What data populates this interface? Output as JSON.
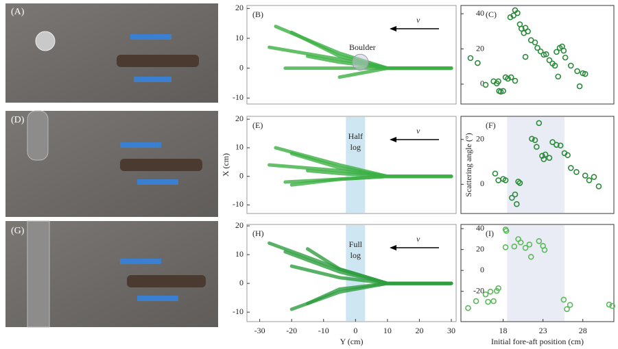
{
  "photos": [
    "(A)",
    "(D)",
    "(G)"
  ],
  "chart_data": [
    {
      "type": "line",
      "label": "(B)",
      "annotation": [
        "Boulder"
      ],
      "arrow_label": "v",
      "circle": {
        "x": 1.5,
        "y": 2,
        "r": 2.5
      },
      "xlim": [
        -34,
        31.5
      ],
      "ylim": [
        -12,
        21
      ],
      "yticks": [
        -10,
        0,
        10,
        20
      ],
      "series": [
        {
          "color": "#3cb043",
          "x": [
            30,
            10,
            -5,
            -25
          ],
          "values": [
            0,
            0,
            5,
            14
          ]
        },
        {
          "color": "#3cb043",
          "x": [
            30,
            10,
            -5,
            -27
          ],
          "values": [
            0,
            0,
            3,
            7
          ]
        },
        {
          "color": "#3cb043",
          "x": [
            30,
            10,
            -5,
            -20
          ],
          "values": [
            0,
            0,
            4,
            12
          ]
        },
        {
          "color": "#3cb043",
          "x": [
            30,
            10,
            -5,
            -15
          ],
          "values": [
            0,
            0,
            2,
            4
          ]
        },
        {
          "color": "#3cb043",
          "x": [
            30,
            10,
            -5,
            -22
          ],
          "values": [
            0,
            0,
            0,
            0
          ]
        },
        {
          "color": "#3cb043",
          "x": [
            30,
            10,
            0,
            -5
          ],
          "values": [
            0,
            0,
            -2,
            -3
          ]
        }
      ]
    },
    {
      "type": "scatter",
      "label": "(C)",
      "color": "#2a8a3a",
      "xlim": [
        12.7,
        31.9
      ],
      "ylim": [
        -11.3,
        44.7
      ],
      "yticks": [
        0,
        20,
        40
      ],
      "x": [
        13.9,
        14.8,
        15.8,
        16.8,
        17.2,
        17.5,
        17.7,
        18,
        17.4,
        18.3,
        18.6,
        19,
        19.5,
        18.9,
        19.3,
        19.5,
        19.8,
        20.1,
        20.3,
        20.6,
        20.8,
        21.1,
        20.8,
        21.5,
        22,
        22.3,
        22.7,
        23.1,
        23.4,
        23.8,
        24.2,
        24.5,
        24.7,
        25.1,
        25.4,
        25.6,
        25.8,
        24.9,
        26.5,
        27.3,
        28,
        28.3,
        27.6
      ],
      "values": [
        14.8,
        12,
        -0.4,
        1.6,
        0.4,
        -3.9,
        -4.3,
        -3.9,
        1.6,
        3.9,
        3.1,
        3.9,
        1.9,
        38,
        39,
        42,
        40.4,
        34,
        31.5,
        29,
        32,
        30,
        15.5,
        25,
        23.7,
        20.6,
        18.6,
        16.7,
        17,
        13.6,
        11.7,
        10.5,
        18.3,
        20.6,
        21.4,
        19,
        15.1,
        4.3,
        10.5,
        7.4,
        6.2,
        5.8,
        -1.2
      ]
    },
    {
      "type": "line",
      "label": "(E)",
      "annotation": [
        "Half",
        "log"
      ],
      "arrow_label": "v",
      "band": [
        -3,
        3
      ],
      "ylabel": "X (cm)",
      "xlim": [
        -34,
        31.5
      ],
      "ylim": [
        -13,
        21
      ],
      "yticks": [
        -10,
        0,
        10,
        20
      ],
      "series": [
        {
          "color": "#3cb043",
          "x": [
            30,
            10,
            -5,
            -25
          ],
          "values": [
            0,
            0,
            4,
            10
          ]
        },
        {
          "color": "#3cb043",
          "x": [
            30,
            10,
            -5,
            -27
          ],
          "values": [
            0,
            0,
            2,
            4
          ]
        },
        {
          "color": "#3cb043",
          "x": [
            30,
            10,
            -5,
            -20
          ],
          "values": [
            0,
            0,
            3,
            8
          ]
        },
        {
          "color": "#3cb043",
          "x": [
            30,
            10,
            -5,
            -15
          ],
          "values": [
            0,
            0,
            1,
            2
          ]
        },
        {
          "color": "#3cb043",
          "x": [
            30,
            10,
            -5,
            -22
          ],
          "values": [
            0,
            0,
            -1,
            -2
          ]
        },
        {
          "color": "#3cb043",
          "x": [
            30,
            10,
            -5,
            -20
          ],
          "values": [
            0,
            0,
            -1,
            -3
          ]
        }
      ]
    },
    {
      "type": "scatter",
      "label": "(F)",
      "color": "#2a8a3a",
      "band": [
        18.5,
        25.7
      ],
      "ylabel": "Scattering angle (°)",
      "xlim": [
        12.7,
        31.9
      ],
      "ylim": [
        -13,
        30.3
      ],
      "yticks": [
        0,
        20
      ],
      "x": [
        17,
        17.4,
        18,
        18.3,
        19.1,
        19.5,
        19.7,
        19.9,
        20.1,
        21.6,
        22,
        22.2,
        22.5,
        22.9,
        23.1,
        23.3,
        23.8,
        24.2,
        24.7,
        25.2,
        25.7,
        26.1,
        26.5,
        27.2,
        28.3,
        28.8,
        29.4,
        30
      ],
      "values": [
        4.8,
        1.8,
        2.4,
        1.8,
        -6,
        -4.5,
        -8.8,
        1.2,
        0.6,
        20.3,
        19.7,
        16.7,
        27.3,
        12.7,
        11.2,
        13.3,
        11.8,
        18.8,
        17.6,
        17.3,
        13.9,
        13,
        7.3,
        5.5,
        3.9,
        1.8,
        3.3,
        -0.9
      ]
    },
    {
      "type": "line",
      "label": "(H)",
      "annotation": [
        "Full",
        "log"
      ],
      "arrow_label": "v",
      "band": [
        -3,
        3
      ],
      "xlabel": "Y (cm)",
      "xlim": [
        -34,
        31.5
      ],
      "ylim": [
        -13.3,
        20.5
      ],
      "yticks": [
        -10,
        0,
        10,
        20
      ],
      "xticks": [
        -30,
        -20,
        -10,
        0,
        10,
        20,
        30
      ],
      "series": [
        {
          "color": "#2e9e3e",
          "x": [
            30,
            10,
            -5,
            -27
          ],
          "values": [
            0,
            0,
            5,
            14
          ]
        },
        {
          "color": "#2e9e3e",
          "x": [
            30,
            10,
            -5,
            -22
          ],
          "values": [
            0,
            0,
            4,
            11
          ]
        },
        {
          "color": "#2e9e3e",
          "x": [
            30,
            10,
            -5,
            -20
          ],
          "values": [
            0,
            0,
            2,
            6
          ]
        },
        {
          "color": "#2e9e3e",
          "x": [
            30,
            10,
            -5,
            -15
          ],
          "values": [
            0,
            0,
            5,
            12
          ]
        },
        {
          "color": "#2e9e3e",
          "x": [
            30,
            10,
            -5,
            -20
          ],
          "values": [
            0,
            0,
            -3,
            -9
          ]
        },
        {
          "color": "#2e9e3e",
          "x": [
            30,
            10,
            -5,
            -15
          ],
          "values": [
            0,
            0,
            -2,
            -7
          ]
        }
      ]
    },
    {
      "type": "scatter",
      "label": "(I)",
      "color": "#5cb85c",
      "band": [
        18.5,
        25.7
      ],
      "xlabel": "Initial fore-aft position (cm)",
      "xlim": [
        12.7,
        31.9
      ],
      "ylim": [
        -49,
        44
      ],
      "yticks": [
        -20,
        0,
        20,
        40
      ],
      "xticks": [
        18,
        23,
        28
      ],
      "x": [
        13.6,
        14.6,
        15.8,
        16.1,
        16.4,
        16.8,
        17.2,
        17.4,
        18.3,
        18.4,
        18.3,
        19.4,
        19.9,
        20.2,
        20.8,
        21.3,
        21.5,
        22.5,
        23,
        23.2,
        25.6,
        26,
        26.4,
        31.3,
        31.7
      ],
      "values": [
        -36,
        -29.4,
        -22.9,
        -30,
        -20.3,
        -29.4,
        -19.6,
        -17,
        39.2,
        37.9,
        22.2,
        22.9,
        30,
        26.8,
        21.6,
        24.8,
        13,
        28.1,
        23.5,
        19.6,
        -28,
        -37,
        -33,
        -32.7,
        -34
      ]
    }
  ]
}
